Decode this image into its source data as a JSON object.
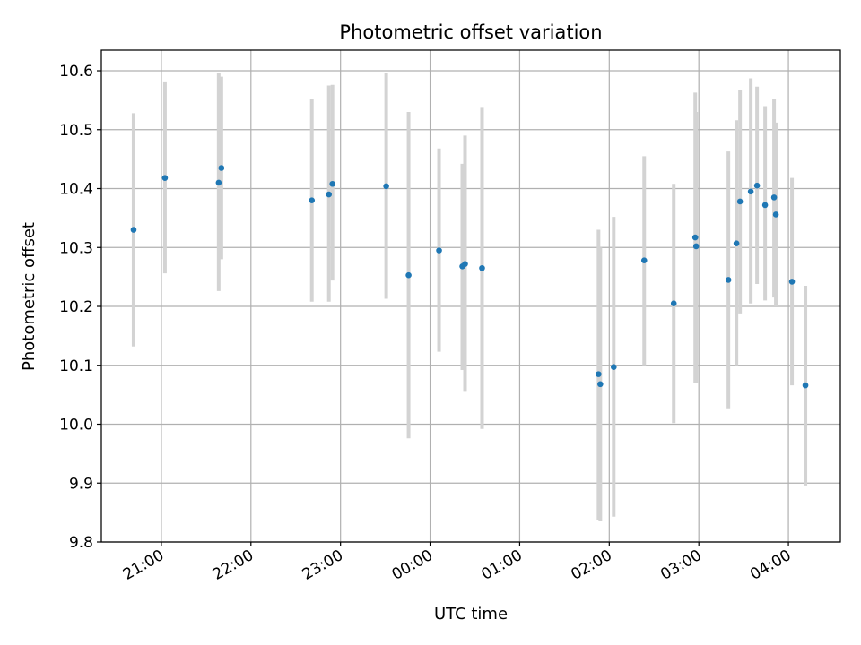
{
  "chart_data": {
    "type": "scatter",
    "title": "Photometric offset variation",
    "xlabel": "UTC time",
    "ylabel": "Photometric offset",
    "x_unit": "UTC time (hours since 00:00, negative = previous evening)",
    "xlim": [
      -3.67,
      4.58
    ],
    "ylim": [
      9.8,
      10.635
    ],
    "xticks": [
      {
        "value": -3,
        "label": "21:00"
      },
      {
        "value": -2,
        "label": "22:00"
      },
      {
        "value": -1,
        "label": "23:00"
      },
      {
        "value": 0,
        "label": "00:00"
      },
      {
        "value": 1,
        "label": "01:00"
      },
      {
        "value": 2,
        "label": "02:00"
      },
      {
        "value": 3,
        "label": "03:00"
      },
      {
        "value": 4,
        "label": "04:00"
      }
    ],
    "yticks": [
      {
        "value": 9.8,
        "label": "9.8"
      },
      {
        "value": 9.9,
        "label": "9.9"
      },
      {
        "value": 10.0,
        "label": "10.0"
      },
      {
        "value": 10.1,
        "label": "10.1"
      },
      {
        "value": 10.2,
        "label": "10.2"
      },
      {
        "value": 10.3,
        "label": "10.3"
      },
      {
        "value": 10.4,
        "label": "10.4"
      },
      {
        "value": 10.5,
        "label": "10.5"
      },
      {
        "value": 10.6,
        "label": "10.6"
      }
    ],
    "grid": true,
    "colors": {
      "point": "#1f77b4",
      "errorbar": "#d3d3d3",
      "grid": "#b0b0b0"
    },
    "points": [
      {
        "t": "20:41",
        "x": -3.31,
        "y": 10.33,
        "ylo": 10.132,
        "yhi": 10.528
      },
      {
        "t": "21:02",
        "x": -2.96,
        "y": 10.418,
        "ylo": 10.256,
        "yhi": 10.582
      },
      {
        "t": "21:38",
        "x": -2.36,
        "y": 10.41,
        "ylo": 10.226,
        "yhi": 10.596
      },
      {
        "t": "21:40",
        "x": -2.33,
        "y": 10.435,
        "ylo": 10.28,
        "yhi": 10.59
      },
      {
        "t": "22:41",
        "x": -1.32,
        "y": 10.38,
        "ylo": 10.208,
        "yhi": 10.552
      },
      {
        "t": "22:52",
        "x": -1.13,
        "y": 10.39,
        "ylo": 10.208,
        "yhi": 10.575
      },
      {
        "t": "22:55",
        "x": -1.09,
        "y": 10.408,
        "ylo": 10.244,
        "yhi": 10.576
      },
      {
        "t": "23:31",
        "x": -0.49,
        "y": 10.404,
        "ylo": 10.213,
        "yhi": 10.596
      },
      {
        "t": "23:46",
        "x": -0.24,
        "y": 10.253,
        "ylo": 9.976,
        "yhi": 10.53
      },
      {
        "t": "00:06",
        "x": 0.1,
        "y": 10.295,
        "ylo": 10.123,
        "yhi": 10.468
      },
      {
        "t": "00:22",
        "x": 0.36,
        "y": 10.268,
        "ylo": 10.092,
        "yhi": 10.442
      },
      {
        "t": "00:23",
        "x": 0.39,
        "y": 10.272,
        "ylo": 10.055,
        "yhi": 10.49
      },
      {
        "t": "00:35",
        "x": 0.58,
        "y": 10.265,
        "ylo": 9.992,
        "yhi": 10.537
      },
      {
        "t": "01:53",
        "x": 1.88,
        "y": 10.085,
        "ylo": 9.838,
        "yhi": 10.33
      },
      {
        "t": "01:54",
        "x": 1.9,
        "y": 10.068,
        "ylo": 9.835,
        "yhi": 10.3
      },
      {
        "t": "02:03",
        "x": 2.05,
        "y": 10.097,
        "ylo": 9.843,
        "yhi": 10.352
      },
      {
        "t": "02:23",
        "x": 2.39,
        "y": 10.278,
        "ylo": 10.1,
        "yhi": 10.455
      },
      {
        "t": "02:43",
        "x": 2.72,
        "y": 10.205,
        "ylo": 10.002,
        "yhi": 10.408
      },
      {
        "t": "02:58",
        "x": 2.96,
        "y": 10.317,
        "ylo": 10.07,
        "yhi": 10.563
      },
      {
        "t": "02:58",
        "x": 2.97,
        "y": 10.302,
        "ylo": 10.07,
        "yhi": 10.53
      },
      {
        "t": "03:20",
        "x": 3.33,
        "y": 10.245,
        "ylo": 10.027,
        "yhi": 10.463
      },
      {
        "t": "03:25",
        "x": 3.42,
        "y": 10.307,
        "ylo": 10.1,
        "yhi": 10.516
      },
      {
        "t": "03:28",
        "x": 3.46,
        "y": 10.378,
        "ylo": 10.188,
        "yhi": 10.568
      },
      {
        "t": "03:35",
        "x": 3.58,
        "y": 10.395,
        "ylo": 10.205,
        "yhi": 10.587
      },
      {
        "t": "03:39",
        "x": 3.65,
        "y": 10.405,
        "ylo": 10.238,
        "yhi": 10.573
      },
      {
        "t": "03:45",
        "x": 3.74,
        "y": 10.372,
        "ylo": 10.21,
        "yhi": 10.54
      },
      {
        "t": "03:50",
        "x": 3.84,
        "y": 10.385,
        "ylo": 10.215,
        "yhi": 10.552
      },
      {
        "t": "03:51",
        "x": 3.86,
        "y": 10.356,
        "ylo": 10.2,
        "yhi": 10.512
      },
      {
        "t": "04:03",
        "x": 4.04,
        "y": 10.242,
        "ylo": 10.066,
        "yhi": 10.418
      },
      {
        "t": "04:11",
        "x": 4.19,
        "y": 10.066,
        "ylo": 9.896,
        "yhi": 10.235
      }
    ]
  }
}
